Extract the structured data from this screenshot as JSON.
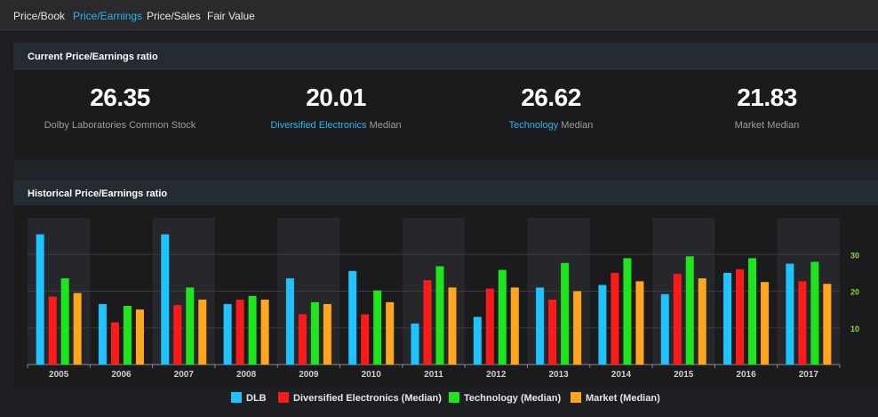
{
  "tabs": [
    {
      "label": "Price/Book",
      "active": false
    },
    {
      "label": "Price/Earnings",
      "active": true
    },
    {
      "label": "Price/Sales",
      "active": false
    },
    {
      "label": "Fair Value",
      "active": false
    }
  ],
  "current_section": {
    "title": "Current Price/Earnings ratio",
    "metrics": [
      {
        "value": "26.35",
        "label_link": "",
        "label_text": "Dolby Laboratories Common Stock"
      },
      {
        "value": "20.01",
        "label_link": "Diversified Electronics",
        "label_text": " Median"
      },
      {
        "value": "26.62",
        "label_link": "Technology",
        "label_text": " Median"
      },
      {
        "value": "21.83",
        "label_link": "",
        "label_text": "Market Median"
      }
    ]
  },
  "historical_section": {
    "title": "Historical Price/Earnings ratio"
  },
  "colors": {
    "accent": "#29b6e8",
    "dlb": "#1ec3ff",
    "diversified": "#ff1a1a",
    "technology": "#1ee61e",
    "market": "#ffa51e"
  },
  "chart_data": {
    "type": "bar",
    "categories": [
      "2005",
      "2006",
      "2007",
      "2008",
      "2009",
      "2010",
      "2011",
      "2012",
      "2013",
      "2014",
      "2015",
      "2016",
      "2017"
    ],
    "series": [
      {
        "name": "DLB",
        "color": "#1ec3ff",
        "values": [
          35.5,
          16.5,
          35.5,
          16.5,
          23.5,
          25.5,
          11.2,
          13.0,
          21.0,
          21.7,
          19.2,
          25.0,
          27.5
        ]
      },
      {
        "name": "Diversified Electronics (Median)",
        "color": "#ff1a1a",
        "values": [
          18.5,
          11.5,
          16.2,
          17.7,
          13.7,
          13.7,
          23.0,
          20.7,
          17.7,
          25.0,
          24.7,
          26.0,
          22.7
        ]
      },
      {
        "name": "Technology (Median)",
        "color": "#1ee61e",
        "values": [
          23.5,
          16.0,
          21.0,
          18.7,
          17.0,
          20.2,
          26.8,
          25.8,
          27.7,
          29.0,
          29.5,
          29.0,
          28.0
        ]
      },
      {
        "name": "Market (Median)",
        "color": "#ffa51e",
        "values": [
          19.5,
          15.0,
          17.7,
          17.7,
          16.5,
          17.0,
          21.0,
          21.0,
          20.0,
          22.7,
          23.5,
          22.5,
          22.0
        ]
      }
    ],
    "yticks": [
      10,
      20,
      30
    ],
    "ylim": [
      0,
      40
    ],
    "grid": true,
    "legend_position": "bottom"
  }
}
